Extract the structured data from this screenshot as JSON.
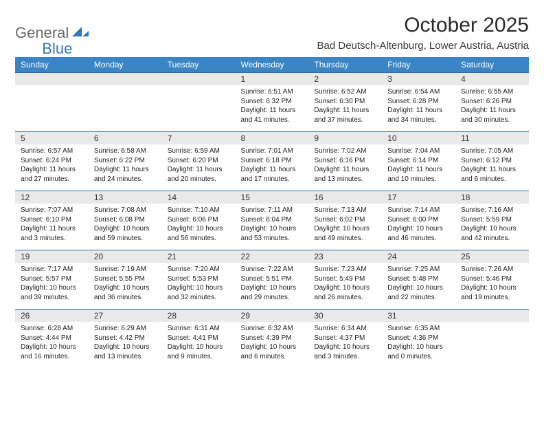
{
  "logo": {
    "word1": "General",
    "word2": "Blue"
  },
  "title": "October 2025",
  "location": "Bad Deutsch-Altenburg, Lower Austria, Austria",
  "weekdays": [
    "Sunday",
    "Monday",
    "Tuesday",
    "Wednesday",
    "Thursday",
    "Friday",
    "Saturday"
  ],
  "colors": {
    "header_bg": "#3b85c4",
    "header_text": "#ffffff",
    "daynum_bg": "#e9e9e9",
    "rule": "#2f6fa8",
    "logo_gray": "#6b6b6b",
    "logo_blue": "#2f77b5"
  },
  "weeks": [
    [
      {
        "n": "",
        "sr": "",
        "ss": "",
        "dl": ""
      },
      {
        "n": "",
        "sr": "",
        "ss": "",
        "dl": ""
      },
      {
        "n": "",
        "sr": "",
        "ss": "",
        "dl": ""
      },
      {
        "n": "1",
        "sr": "6:51 AM",
        "ss": "6:32 PM",
        "dl": "11 hours and 41 minutes."
      },
      {
        "n": "2",
        "sr": "6:52 AM",
        "ss": "6:30 PM",
        "dl": "11 hours and 37 minutes."
      },
      {
        "n": "3",
        "sr": "6:54 AM",
        "ss": "6:28 PM",
        "dl": "11 hours and 34 minutes."
      },
      {
        "n": "4",
        "sr": "6:55 AM",
        "ss": "6:26 PM",
        "dl": "11 hours and 30 minutes."
      }
    ],
    [
      {
        "n": "5",
        "sr": "6:57 AM",
        "ss": "6:24 PM",
        "dl": "11 hours and 27 minutes."
      },
      {
        "n": "6",
        "sr": "6:58 AM",
        "ss": "6:22 PM",
        "dl": "11 hours and 24 minutes."
      },
      {
        "n": "7",
        "sr": "6:59 AM",
        "ss": "6:20 PM",
        "dl": "11 hours and 20 minutes."
      },
      {
        "n": "8",
        "sr": "7:01 AM",
        "ss": "6:18 PM",
        "dl": "11 hours and 17 minutes."
      },
      {
        "n": "9",
        "sr": "7:02 AM",
        "ss": "6:16 PM",
        "dl": "11 hours and 13 minutes."
      },
      {
        "n": "10",
        "sr": "7:04 AM",
        "ss": "6:14 PM",
        "dl": "11 hours and 10 minutes."
      },
      {
        "n": "11",
        "sr": "7:05 AM",
        "ss": "6:12 PM",
        "dl": "11 hours and 6 minutes."
      }
    ],
    [
      {
        "n": "12",
        "sr": "7:07 AM",
        "ss": "6:10 PM",
        "dl": "11 hours and 3 minutes."
      },
      {
        "n": "13",
        "sr": "7:08 AM",
        "ss": "6:08 PM",
        "dl": "10 hours and 59 minutes."
      },
      {
        "n": "14",
        "sr": "7:10 AM",
        "ss": "6:06 PM",
        "dl": "10 hours and 56 minutes."
      },
      {
        "n": "15",
        "sr": "7:11 AM",
        "ss": "6:04 PM",
        "dl": "10 hours and 53 minutes."
      },
      {
        "n": "16",
        "sr": "7:13 AM",
        "ss": "6:02 PM",
        "dl": "10 hours and 49 minutes."
      },
      {
        "n": "17",
        "sr": "7:14 AM",
        "ss": "6:00 PM",
        "dl": "10 hours and 46 minutes."
      },
      {
        "n": "18",
        "sr": "7:16 AM",
        "ss": "5:59 PM",
        "dl": "10 hours and 42 minutes."
      }
    ],
    [
      {
        "n": "19",
        "sr": "7:17 AM",
        "ss": "5:57 PM",
        "dl": "10 hours and 39 minutes."
      },
      {
        "n": "20",
        "sr": "7:19 AM",
        "ss": "5:55 PM",
        "dl": "10 hours and 36 minutes."
      },
      {
        "n": "21",
        "sr": "7:20 AM",
        "ss": "5:53 PM",
        "dl": "10 hours and 32 minutes."
      },
      {
        "n": "22",
        "sr": "7:22 AM",
        "ss": "5:51 PM",
        "dl": "10 hours and 29 minutes."
      },
      {
        "n": "23",
        "sr": "7:23 AM",
        "ss": "5:49 PM",
        "dl": "10 hours and 26 minutes."
      },
      {
        "n": "24",
        "sr": "7:25 AM",
        "ss": "5:48 PM",
        "dl": "10 hours and 22 minutes."
      },
      {
        "n": "25",
        "sr": "7:26 AM",
        "ss": "5:46 PM",
        "dl": "10 hours and 19 minutes."
      }
    ],
    [
      {
        "n": "26",
        "sr": "6:28 AM",
        "ss": "4:44 PM",
        "dl": "10 hours and 16 minutes."
      },
      {
        "n": "27",
        "sr": "6:29 AM",
        "ss": "4:42 PM",
        "dl": "10 hours and 13 minutes."
      },
      {
        "n": "28",
        "sr": "6:31 AM",
        "ss": "4:41 PM",
        "dl": "10 hours and 9 minutes."
      },
      {
        "n": "29",
        "sr": "6:32 AM",
        "ss": "4:39 PM",
        "dl": "10 hours and 6 minutes."
      },
      {
        "n": "30",
        "sr": "6:34 AM",
        "ss": "4:37 PM",
        "dl": "10 hours and 3 minutes."
      },
      {
        "n": "31",
        "sr": "6:35 AM",
        "ss": "4:36 PM",
        "dl": "10 hours and 0 minutes."
      },
      {
        "n": "",
        "sr": "",
        "ss": "",
        "dl": ""
      }
    ]
  ],
  "labels": {
    "sunrise": "Sunrise: ",
    "sunset": "Sunset: ",
    "daylight": "Daylight: "
  }
}
